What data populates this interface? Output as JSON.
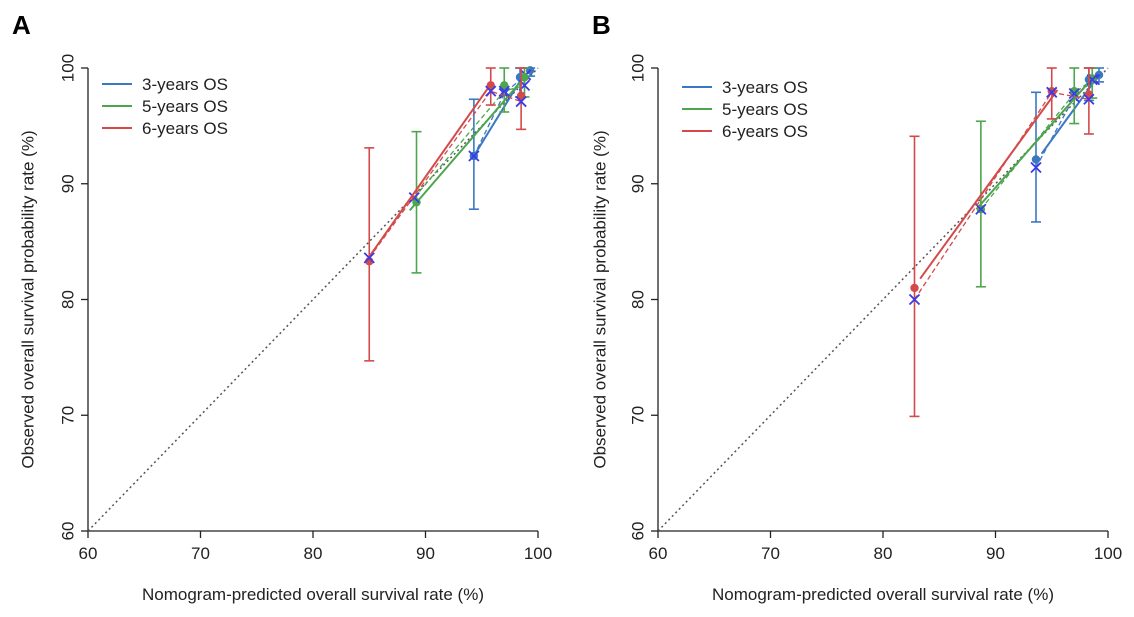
{
  "chart_data": [
    {
      "panel_label": "A",
      "type": "line",
      "xlabel": "Nomogram-predicted overall survival rate (%)",
      "ylabel": "Observed overall survival probability rate (%)",
      "xlim": [
        60,
        100
      ],
      "ylim": [
        60,
        100
      ],
      "xticks": [
        "60",
        "70",
        "80",
        "90",
        "100"
      ],
      "yticks": [
        "60",
        "70",
        "80",
        "90",
        "100"
      ],
      "legend_position": "top-left",
      "legend": [
        "3-years OS",
        "5-years OS",
        "6-years OS"
      ],
      "reference_line": {
        "x": [
          60,
          100
        ],
        "y": [
          60,
          100
        ]
      },
      "series": [
        {
          "name": "3-years OS",
          "color": "#3a78c2",
          "points": [
            {
              "x": 94.3,
              "y": 92.4,
              "low": 87.8,
              "high": 97.3
            },
            {
              "x": 98.4,
              "y": 99.2,
              "low": 97.5,
              "high": 100.0
            },
            {
              "x": 99.3,
              "y": 99.8,
              "low": 99.3,
              "high": 100.0
            }
          ],
          "line": {
            "x": [
              94.3,
              98.8
            ],
            "y": [
              92.4,
              99.5
            ]
          },
          "apparent": [
            {
              "x": 94.3,
              "y": 92.4
            },
            {
              "x": 97.0,
              "y": 97.8
            },
            {
              "x": 98.9,
              "y": 99.4
            }
          ]
        },
        {
          "name": "5-years OS",
          "color": "#4da64d",
          "points": [
            {
              "x": 89.2,
              "y": 88.4,
              "low": 82.3,
              "high": 94.5
            },
            {
              "x": 97.0,
              "y": 98.5,
              "low": 96.2,
              "high": 100.0
            },
            {
              "x": 98.8,
              "y": 99.2,
              "low": 97.5,
              "high": 100.0
            }
          ],
          "line": {
            "x": [
              88.6,
              98.8
            ],
            "y": [
              87.7,
              99.2
            ]
          },
          "apparent": [
            {
              "x": 89.0,
              "y": 88.8
            },
            {
              "x": 97.0,
              "y": 98.0
            },
            {
              "x": 98.8,
              "y": 98.5
            }
          ]
        },
        {
          "name": "6-years OS",
          "color": "#d44a4a",
          "points": [
            {
              "x": 85.0,
              "y": 83.3,
              "low": 74.7,
              "high": 93.1
            },
            {
              "x": 95.8,
              "y": 98.5,
              "low": 96.8,
              "high": 100.0
            },
            {
              "x": 98.5,
              "y": 97.6,
              "low": 94.7,
              "high": 100.0
            }
          ],
          "line": {
            "x": [
              85.0,
              95.8
            ],
            "y": [
              83.7,
              98.6
            ]
          },
          "apparent": [
            {
              "x": 85.0,
              "y": 83.6
            },
            {
              "x": 95.8,
              "y": 98.0
            },
            {
              "x": 98.5,
              "y": 97.1
            }
          ]
        }
      ]
    },
    {
      "panel_label": "B",
      "type": "line",
      "xlabel": "Nomogram-predicted overall survival rate (%)",
      "ylabel": "Observed overall survival probability rate (%)",
      "xlim": [
        60,
        100
      ],
      "ylim": [
        60,
        100
      ],
      "xticks": [
        "60",
        "70",
        "80",
        "90",
        "100"
      ],
      "yticks": [
        "60",
        "70",
        "80",
        "90",
        "100"
      ],
      "legend_position": "top-left",
      "legend": [
        "3-years OS",
        "5-years OS",
        "6-years OS"
      ],
      "reference_line": {
        "x": [
          60,
          100
        ],
        "y": [
          60,
          100
        ]
      },
      "series": [
        {
          "name": "3-years OS",
          "color": "#3a78c2",
          "points": [
            {
              "x": 93.6,
              "y": 92.1,
              "low": 86.7,
              "high": 97.9
            },
            {
              "x": 98.3,
              "y": 99.0,
              "low": 97.2,
              "high": 100.0
            },
            {
              "x": 99.2,
              "y": 99.4,
              "low": 98.8,
              "high": 100.0
            }
          ],
          "line": {
            "x": [
              94.1,
              99.2
            ],
            "y": [
              92.6,
              99.4
            ]
          },
          "apparent": [
            {
              "x": 93.6,
              "y": 91.4
            },
            {
              "x": 97.0,
              "y": 97.5
            },
            {
              "x": 98.8,
              "y": 99.0
            }
          ]
        },
        {
          "name": "5-years OS",
          "color": "#4da64d",
          "points": [
            {
              "x": 88.7,
              "y": 87.8,
              "low": 81.1,
              "high": 95.4
            },
            {
              "x": 97.0,
              "y": 98.0,
              "low": 95.2,
              "high": 100.0
            },
            {
              "x": 98.6,
              "y": 99.1,
              "low": 97.4,
              "high": 100.0
            }
          ],
          "line": {
            "x": [
              88.3,
              98.6
            ],
            "y": [
              87.8,
              99.1
            ]
          },
          "apparent": [
            {
              "x": 88.7,
              "y": 87.8
            },
            {
              "x": 97.0,
              "y": 97.8
            },
            {
              "x": 98.6,
              "y": 99.0
            }
          ]
        },
        {
          "name": "6-years OS",
          "color": "#d44a4a",
          "points": [
            {
              "x": 82.8,
              "y": 81.0,
              "low": 69.9,
              "high": 94.1
            },
            {
              "x": 95.0,
              "y": 98.0,
              "low": 95.6,
              "high": 100.0
            },
            {
              "x": 98.3,
              "y": 97.7,
              "low": 94.3,
              "high": 100.0
            }
          ],
          "line": {
            "x": [
              83.3,
              95.5
            ],
            "y": [
              81.8,
              98.1
            ]
          },
          "apparent": [
            {
              "x": 82.8,
              "y": 80.0
            },
            {
              "x": 95.0,
              "y": 97.9
            },
            {
              "x": 98.3,
              "y": 97.3
            }
          ]
        }
      ]
    }
  ]
}
